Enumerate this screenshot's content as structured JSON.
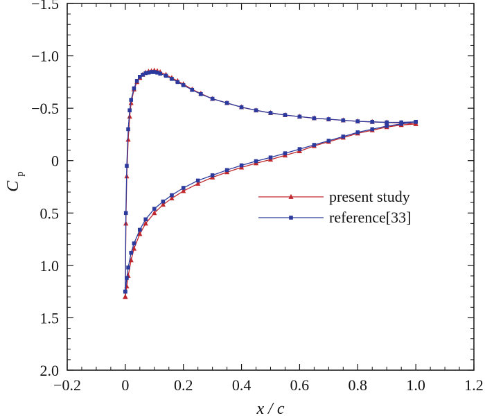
{
  "chart_data": {
    "type": "line",
    "title": "",
    "xlabel": "x / c",
    "ylabel": "C_p",
    "ylabel_main": "C",
    "ylabel_sub": "p",
    "xlim": [
      -0.2,
      1.2
    ],
    "ylim": [
      2.0,
      -1.5
    ],
    "y_inverted": true,
    "grid": false,
    "legend_position": "center-right",
    "x_ticks": [
      -0.2,
      0,
      0.2,
      0.4,
      0.6,
      0.8,
      1.0,
      1.2
    ],
    "x_tick_labels": [
      "−0.2",
      "0",
      "0.2",
      "0.4",
      "0.6",
      "0.8",
      "1.0",
      "1.2"
    ],
    "y_ticks": [
      -1.5,
      -1.0,
      -0.5,
      0,
      0.5,
      1.0,
      1.5,
      2.0
    ],
    "y_tick_labels": [
      "−1.5",
      "−1.0",
      "−0.5",
      "0",
      "0.5",
      "1.0",
      "1.5",
      "2.0"
    ],
    "series": [
      {
        "name": "present study",
        "color": "#c0282d",
        "marker": "triangle",
        "upper": {
          "x": [
            0.0,
            0.002,
            0.005,
            0.01,
            0.015,
            0.02,
            0.03,
            0.04,
            0.05,
            0.06,
            0.07,
            0.08,
            0.09,
            0.1,
            0.11,
            0.12,
            0.14,
            0.16,
            0.18,
            0.2,
            0.23,
            0.26,
            0.3,
            0.35,
            0.4,
            0.45,
            0.5,
            0.55,
            0.6,
            0.65,
            0.7,
            0.75,
            0.8,
            0.85,
            0.9,
            0.95,
            1.0
          ],
          "y": [
            1.3,
            0.6,
            0.15,
            -0.2,
            -0.42,
            -0.55,
            -0.68,
            -0.75,
            -0.79,
            -0.82,
            -0.84,
            -0.85,
            -0.855,
            -0.86,
            -0.855,
            -0.845,
            -0.82,
            -0.79,
            -0.76,
            -0.73,
            -0.68,
            -0.64,
            -0.59,
            -0.55,
            -0.51,
            -0.48,
            -0.455,
            -0.435,
            -0.42,
            -0.405,
            -0.395,
            -0.385,
            -0.375,
            -0.37,
            -0.365,
            -0.36,
            -0.35
          ]
        },
        "lower": {
          "x": [
            0.0,
            0.005,
            0.01,
            0.02,
            0.03,
            0.05,
            0.07,
            0.1,
            0.13,
            0.16,
            0.2,
            0.25,
            0.3,
            0.35,
            0.4,
            0.45,
            0.5,
            0.55,
            0.6,
            0.65,
            0.7,
            0.75,
            0.8,
            0.85,
            0.9,
            0.95,
            1.0
          ],
          "y": [
            1.3,
            1.2,
            1.1,
            0.95,
            0.84,
            0.7,
            0.6,
            0.5,
            0.42,
            0.36,
            0.29,
            0.22,
            0.16,
            0.11,
            0.065,
            0.025,
            -0.01,
            -0.05,
            -0.09,
            -0.14,
            -0.18,
            -0.22,
            -0.26,
            -0.29,
            -0.32,
            -0.34,
            -0.35
          ]
        }
      },
      {
        "name": "reference[33]",
        "color": "#2b3a9c",
        "marker": "square",
        "upper": {
          "x": [
            0.0,
            0.002,
            0.005,
            0.01,
            0.015,
            0.02,
            0.03,
            0.04,
            0.05,
            0.06,
            0.07,
            0.08,
            0.09,
            0.1,
            0.11,
            0.12,
            0.14,
            0.16,
            0.18,
            0.2,
            0.23,
            0.26,
            0.3,
            0.35,
            0.4,
            0.45,
            0.5,
            0.55,
            0.6,
            0.65,
            0.7,
            0.75,
            0.8,
            0.85,
            0.9,
            0.95,
            1.0
          ],
          "y": [
            1.25,
            0.5,
            0.05,
            -0.3,
            -0.48,
            -0.58,
            -0.69,
            -0.76,
            -0.8,
            -0.82,
            -0.835,
            -0.84,
            -0.845,
            -0.845,
            -0.84,
            -0.83,
            -0.81,
            -0.78,
            -0.75,
            -0.72,
            -0.675,
            -0.635,
            -0.59,
            -0.55,
            -0.51,
            -0.48,
            -0.455,
            -0.435,
            -0.42,
            -0.405,
            -0.395,
            -0.385,
            -0.375,
            -0.37,
            -0.365,
            -0.365,
            -0.37
          ]
        },
        "lower": {
          "x": [
            0.0,
            0.005,
            0.01,
            0.02,
            0.03,
            0.05,
            0.07,
            0.1,
            0.13,
            0.16,
            0.2,
            0.25,
            0.3,
            0.35,
            0.4,
            0.45,
            0.5,
            0.55,
            0.6,
            0.65,
            0.7,
            0.75,
            0.8,
            0.85,
            0.9,
            0.95,
            1.0
          ],
          "y": [
            1.25,
            1.12,
            1.02,
            0.88,
            0.79,
            0.66,
            0.56,
            0.46,
            0.39,
            0.33,
            0.26,
            0.19,
            0.14,
            0.09,
            0.045,
            0.005,
            -0.03,
            -0.07,
            -0.11,
            -0.15,
            -0.19,
            -0.23,
            -0.27,
            -0.3,
            -0.33,
            -0.35,
            -0.37
          ]
        }
      }
    ]
  }
}
